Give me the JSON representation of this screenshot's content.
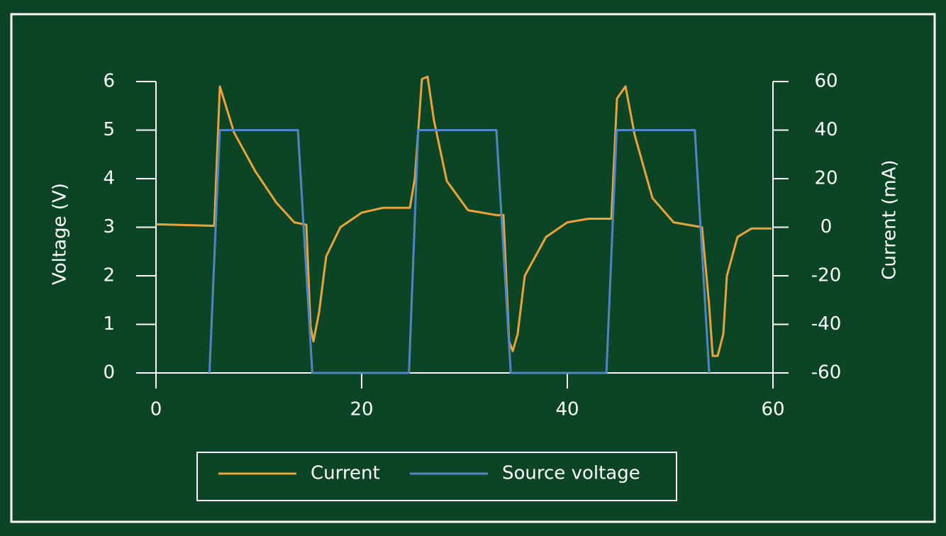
{
  "chart_data": {
    "type": "line",
    "xlim": [
      0,
      60
    ],
    "xticks": [
      0,
      20,
      40,
      60
    ],
    "ylim": [
      0,
      6
    ],
    "yticks": [
      0,
      1,
      2,
      3,
      4,
      5,
      6
    ],
    "y2lim": [
      -60,
      60
    ],
    "y2ticks": [
      -60,
      -40,
      -20,
      0,
      20,
      40,
      60
    ],
    "ylabel": "Voltage (V)",
    "y2label": "Current (mA)",
    "grid": false,
    "legend": "bottom",
    "series": [
      {
        "name": "Current",
        "color": "#eca33a",
        "axis": "y2",
        "x": [
          0,
          5.66,
          6.21,
          7.59,
          9.66,
          11.72,
          13.45,
          14.62,
          15.03,
          15.31,
          15.86,
          16.55,
          17.93,
          20,
          22.07,
          24.69,
          25.17,
          25.86,
          26.41,
          27.03,
          28.28,
          30.34,
          33.1,
          33.79,
          34.34,
          34.69,
          35.17,
          35.86,
          37.93,
          40,
          42.07,
          44.28,
          44.83,
          45.66,
          46.55,
          48.28,
          50.34,
          53.1,
          53.79,
          54.14,
          54.62,
          55.17,
          55.52,
          56.55,
          57.93,
          59.86
        ],
        "values": [
          1.2,
          0.6,
          58,
          39,
          23,
          10,
          2,
          1,
          -41,
          -47,
          -35,
          -12,
          0,
          6,
          8,
          8,
          20,
          61,
          62,
          44,
          19,
          7,
          5,
          5,
          -47,
          -51,
          -44,
          -20,
          -4,
          2,
          3.5,
          3.5,
          53,
          58,
          38,
          12,
          2,
          0,
          -32,
          -53,
          -53,
          -44,
          -20,
          -4,
          -0.5,
          -0.5
        ]
      },
      {
        "name": "Source voltage",
        "color": "#4f86c6",
        "x": [
          5.2,
          6.2,
          13.8,
          15.2,
          24.6,
          25.5,
          33.1,
          34.5,
          43.8,
          44.8,
          52.4,
          53.8
        ],
        "values": [
          0,
          5,
          5,
          0,
          0,
          5,
          5,
          0,
          0,
          5,
          5,
          0
        ]
      }
    ]
  }
}
